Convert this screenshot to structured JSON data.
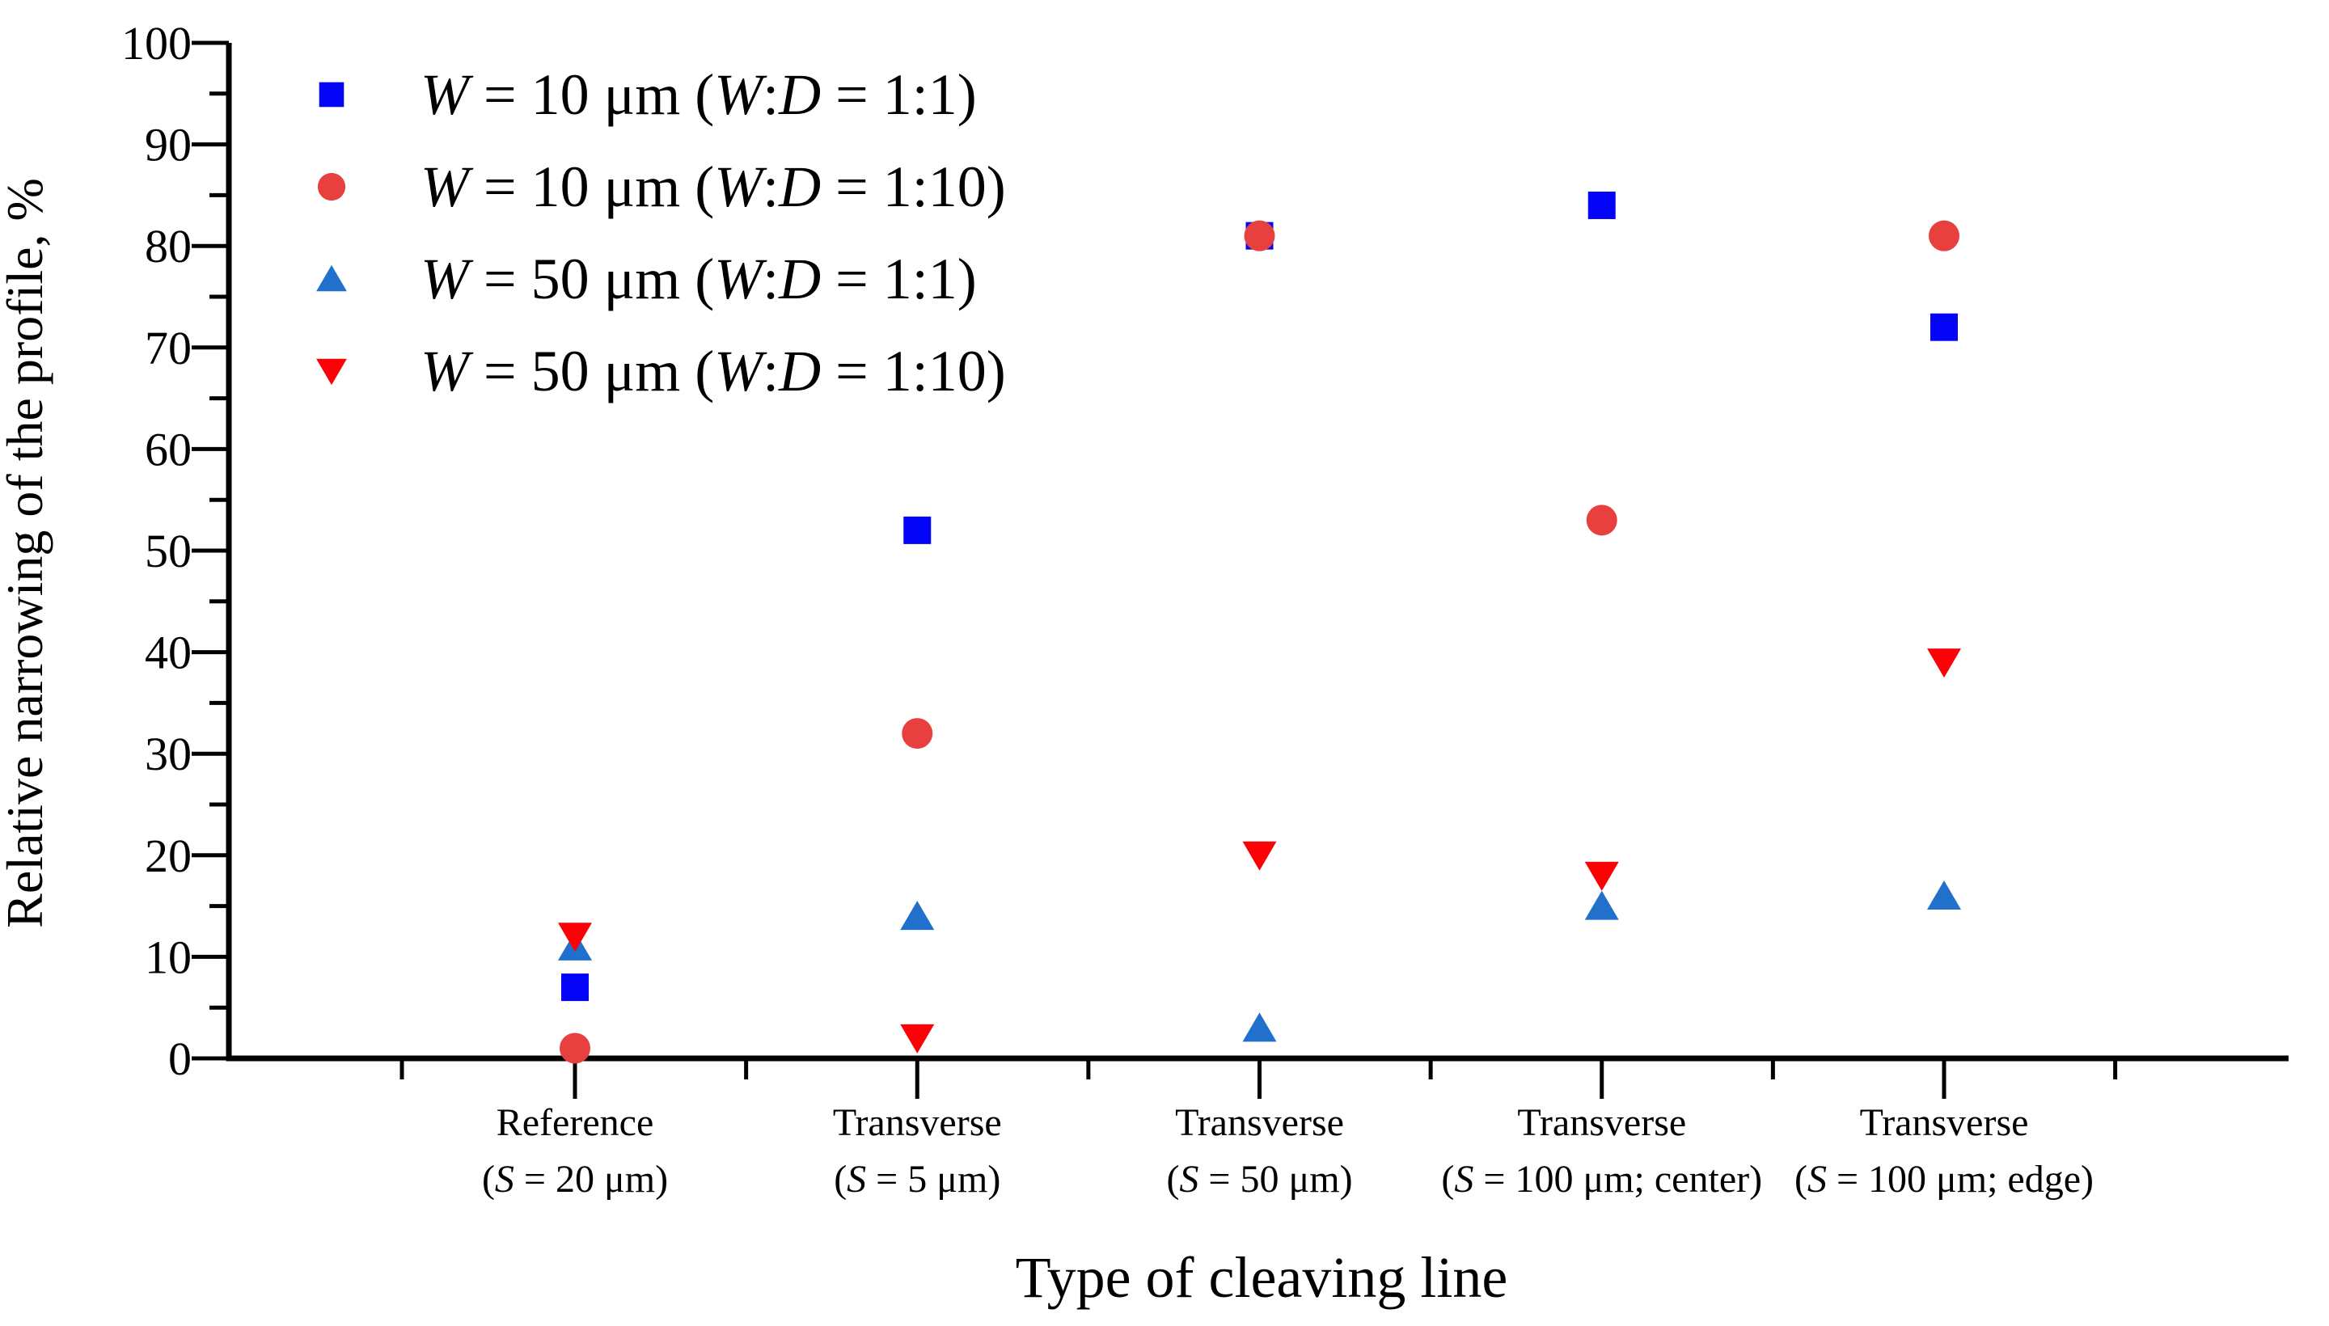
{
  "figure": {
    "background": "#ffffff",
    "axis_color": "#000000",
    "text_color": "#000000"
  },
  "chart_data": {
    "type": "scatter",
    "title": "",
    "xlabel": "Type of cleaving line",
    "ylabel": "Relative narrowing of the profile, %",
    "ylim": [
      0,
      100
    ],
    "ytick_step": 10,
    "ytick_minor_step": 5,
    "grid": false,
    "legend_position": "top-left-inside",
    "categories": [
      {
        "line1": "Reference",
        "line2": "(S = 20 μm)"
      },
      {
        "line1": "Transverse",
        "line2": "(S = 5 μm)"
      },
      {
        "line1": "Transverse",
        "line2": "(S = 50 μm)"
      },
      {
        "line1": "Transverse",
        "line2": "(S = 100 μm; center)"
      },
      {
        "line1": "Transverse",
        "line2": "(S = 100 μm; edge)"
      }
    ],
    "yticks": [
      0,
      10,
      20,
      30,
      40,
      50,
      60,
      70,
      80,
      90,
      100
    ],
    "series": [
      {
        "name": "W = 10 μm (W:D = 1:1)",
        "marker": "square",
        "color": "#0404F9",
        "values": [
          7,
          52,
          81,
          84,
          72
        ]
      },
      {
        "name": "W = 10 μm (W:D = 1:10)",
        "marker": "circle",
        "color": "#E8403F",
        "values": [
          1,
          32,
          81,
          53,
          81
        ]
      },
      {
        "name": "W = 50 μm (W:D = 1:1)",
        "marker": "triangle-up",
        "color": "#2070CC",
        "values": [
          11,
          14,
          3,
          15,
          16
        ]
      },
      {
        "name": "W = 50 μm (W:D = 1:10)",
        "marker": "triangle-down",
        "color": "#FB0306",
        "values": [
          12,
          2,
          20,
          18,
          39
        ]
      }
    ]
  }
}
